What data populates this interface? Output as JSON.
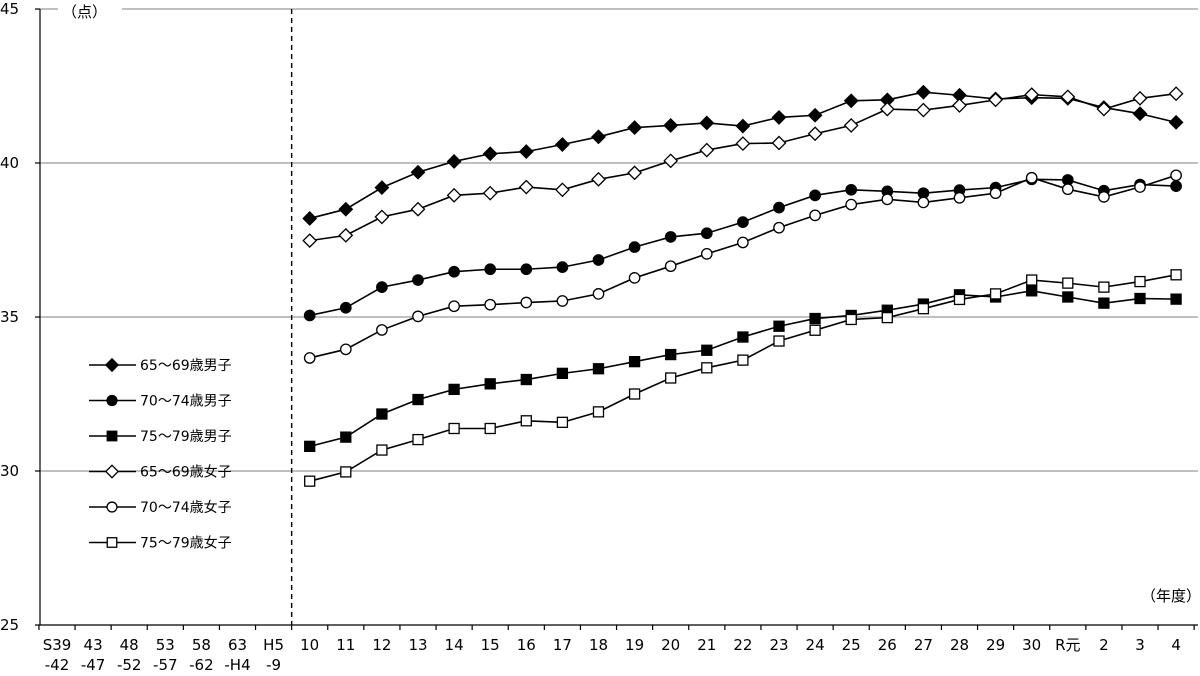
{
  "chart_data": {
    "type": "line",
    "unit_y": "（点）",
    "unit_x": "（年度）",
    "ylim": [
      25,
      45
    ],
    "yticks": [
      25,
      30,
      35,
      40,
      45
    ],
    "grid": "horizontal",
    "legend_position": "left",
    "x_categories": [
      [
        "S39",
        "-42"
      ],
      [
        "43",
        "-47"
      ],
      [
        "48",
        "-52"
      ],
      [
        "53",
        "-57"
      ],
      [
        "58",
        "-62"
      ],
      [
        "63",
        "-H4"
      ],
      [
        "H5",
        "-9"
      ],
      [
        "10"
      ],
      [
        "11"
      ],
      [
        "12"
      ],
      [
        "13"
      ],
      [
        "14"
      ],
      [
        "15"
      ],
      [
        "16"
      ],
      [
        "17"
      ],
      [
        "18"
      ],
      [
        "19"
      ],
      [
        "20"
      ],
      [
        "21"
      ],
      [
        "22"
      ],
      [
        "23"
      ],
      [
        "24"
      ],
      [
        "25"
      ],
      [
        "26"
      ],
      [
        "27"
      ],
      [
        "28"
      ],
      [
        "29"
      ],
      [
        "30"
      ],
      [
        "R元"
      ],
      [
        "2"
      ],
      [
        "3"
      ],
      [
        "4"
      ]
    ],
    "series_start_index": 7,
    "series": [
      {
        "name": "65～69歳男子",
        "marker": "diamond",
        "fill": "#000000",
        "values": [
          38.2,
          38.5,
          39.2,
          39.7,
          40.05,
          40.3,
          40.37,
          40.6,
          40.85,
          41.15,
          41.22,
          41.3,
          41.2,
          41.48,
          41.55,
          42.02,
          42.05,
          42.3,
          42.2,
          42.08,
          42.12,
          42.1,
          41.8,
          41.6,
          41.32
        ]
      },
      {
        "name": "70～74歳男子",
        "marker": "circle",
        "fill": "#000000",
        "values": [
          35.05,
          35.3,
          35.97,
          36.2,
          36.47,
          36.55,
          36.55,
          36.62,
          36.85,
          37.27,
          37.6,
          37.72,
          38.08,
          38.55,
          38.95,
          39.13,
          39.08,
          39.02,
          39.12,
          39.2,
          39.47,
          39.45,
          39.1,
          39.3,
          39.25
        ]
      },
      {
        "name": "75～79歳男子",
        "marker": "square",
        "fill": "#000000",
        "values": [
          30.8,
          31.1,
          31.85,
          32.32,
          32.65,
          32.83,
          32.97,
          33.17,
          33.32,
          33.55,
          33.78,
          33.92,
          34.35,
          34.7,
          34.95,
          35.05,
          35.22,
          35.42,
          35.72,
          35.65,
          35.85,
          35.65,
          35.45,
          35.6,
          35.58
        ]
      },
      {
        "name": "65～69歳女子",
        "marker": "diamond",
        "fill": "#ffffff",
        "values": [
          37.48,
          37.65,
          38.25,
          38.5,
          38.95,
          39.02,
          39.22,
          39.13,
          39.47,
          39.68,
          40.07,
          40.42,
          40.63,
          40.65,
          40.95,
          41.22,
          41.75,
          41.72,
          41.87,
          42.05,
          42.22,
          42.15,
          41.75,
          42.1,
          42.25
        ]
      },
      {
        "name": "70～74歳女子",
        "marker": "circle",
        "fill": "#ffffff",
        "values": [
          33.67,
          33.95,
          34.58,
          35.02,
          35.35,
          35.4,
          35.47,
          35.52,
          35.75,
          36.27,
          36.65,
          37.05,
          37.42,
          37.9,
          38.3,
          38.65,
          38.82,
          38.72,
          38.87,
          39.02,
          39.52,
          39.15,
          38.9,
          39.22,
          39.6
        ]
      },
      {
        "name": "75～79歳女子",
        "marker": "square",
        "fill": "#ffffff",
        "values": [
          29.67,
          29.97,
          30.68,
          31.02,
          31.38,
          31.38,
          31.63,
          31.58,
          31.92,
          32.5,
          33.02,
          33.35,
          33.6,
          34.22,
          34.57,
          34.92,
          34.98,
          35.27,
          35.57,
          35.75,
          36.2,
          36.1,
          35.97,
          36.15,
          36.37
        ]
      }
    ]
  }
}
